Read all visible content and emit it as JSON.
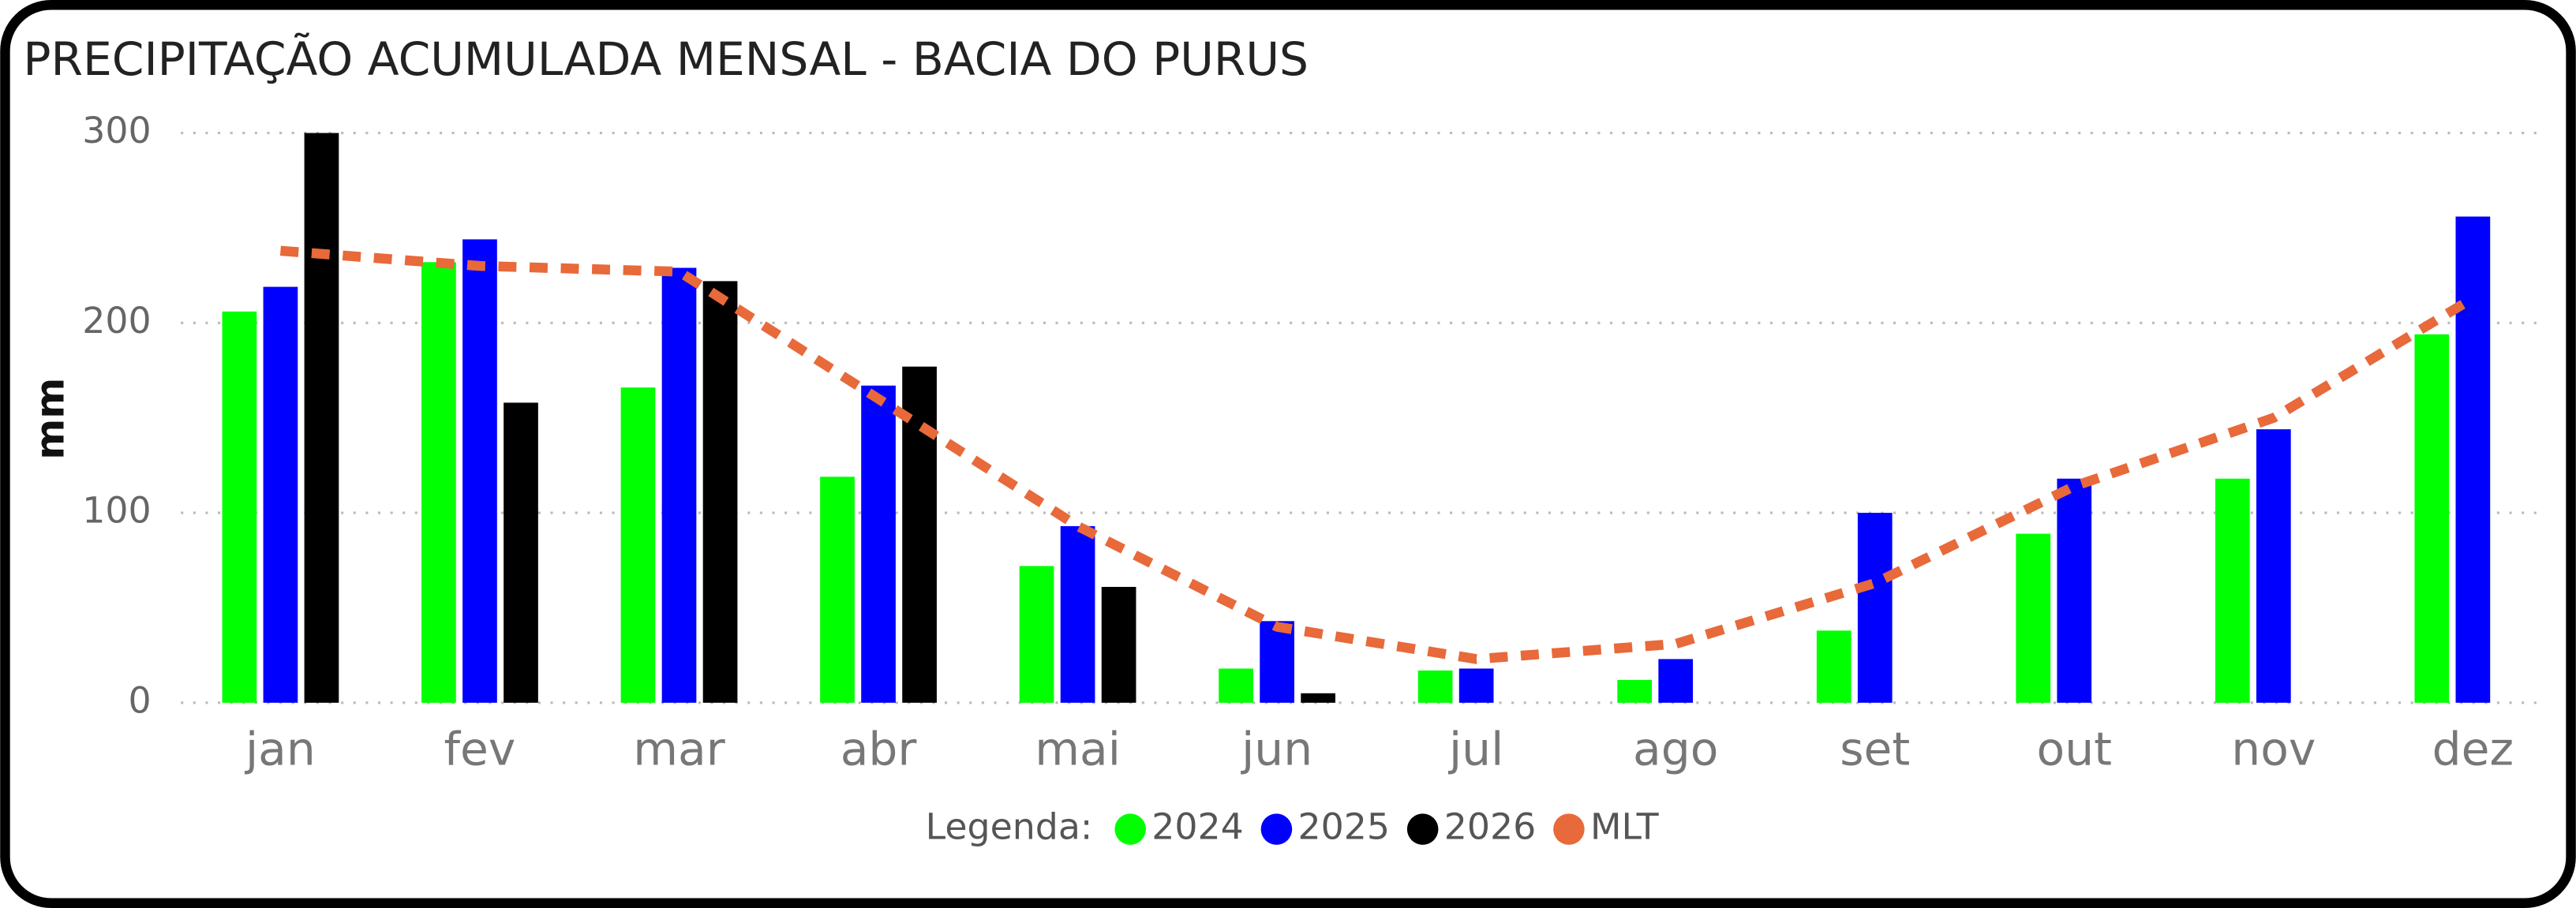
{
  "chart_data": {
    "type": "bar",
    "title": "PRECIPITAÇÃO ACUMULADA MENSAL - BACIA DO PURUS",
    "y_label": "mm",
    "legend_title": "Legenda:",
    "categories": [
      "jan",
      "fev",
      "mar",
      "abr",
      "mai",
      "jun",
      "jul",
      "ago",
      "set",
      "out",
      "nov",
      "dez"
    ],
    "series": [
      {
        "name": "2024",
        "type": "bar",
        "color": "#00ff00",
        "values": [
          206,
          232,
          166,
          119,
          72,
          18,
          17,
          12,
          38,
          89,
          118,
          194
        ]
      },
      {
        "name": "2025",
        "type": "bar",
        "color": "#0000ff",
        "values": [
          219,
          244,
          229,
          167,
          93,
          43,
          18,
          23,
          100,
          118,
          144,
          256
        ]
      },
      {
        "name": "2026",
        "type": "bar",
        "color": "#000000",
        "values": [
          300,
          158,
          222,
          177,
          61,
          5,
          null,
          null,
          null,
          null,
          null,
          null
        ]
      },
      {
        "name": "MLT",
        "type": "line",
        "color": "#e8693a",
        "values": [
          238,
          230,
          227,
          160,
          93,
          40,
          23,
          31,
          63,
          114,
          150,
          213
        ]
      }
    ],
    "ylim": [
      0,
      300
    ],
    "yticks": [
      0,
      100,
      200,
      300
    ],
    "grid": true
  }
}
